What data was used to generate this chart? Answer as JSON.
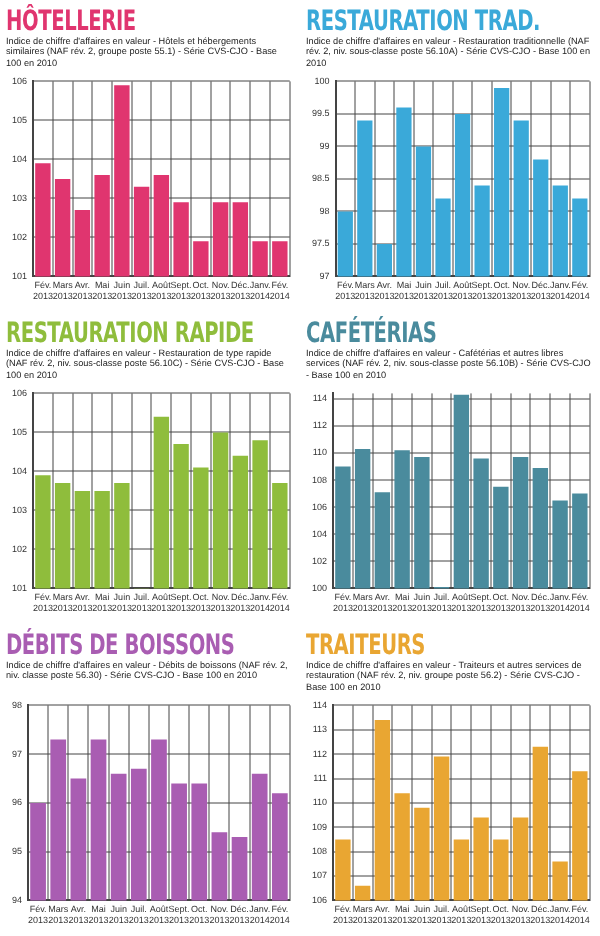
{
  "chart_data": [
    {
      "type": "bar",
      "title": "HÔTELLERIE",
      "subtitle": "Indice de chiffre d'affaires en valeur - Hôtels et hébergements similaires (NAF rév. 2, groupe poste 55.1) - Série CVS-CJO - Base 100 en 2010",
      "categories": [
        "Fév. 2013",
        "Mars 2013",
        "Avr. 2013",
        "Mai 2013",
        "Juin 2013",
        "Juil. 2013",
        "Août 2013",
        "Sept. 2013",
        "Oct. 2013",
        "Nov. 2013",
        "Déc. 2013",
        "Janv. 2014",
        "Fév. 2014"
      ],
      "values": [
        103.9,
        103.5,
        102.7,
        103.6,
        105.9,
        103.3,
        103.6,
        102.9,
        101.9,
        102.9,
        102.9,
        101.9,
        101.9
      ],
      "color": "#e0356f",
      "ylim": [
        101,
        106
      ],
      "yticks": [
        101,
        102,
        103,
        104,
        105,
        106
      ],
      "grid": true
    },
    {
      "type": "bar",
      "title": "RESTAURATION TRAD.",
      "subtitle": "Indice de chiffre d'affaires en valeur - Restauration traditionnelle (NAF rév. 2, niv. sous-classe poste 56.10A) - Série CVS-CJO - Base 100 en 2010",
      "categories": [
        "Fév. 2013",
        "Mars 2013",
        "Avr. 2013",
        "Mai 2013",
        "Juin 2013",
        "Juil. 2013",
        "Août 2013",
        "Sept. 2013",
        "Oct. 2013",
        "Nov. 2013",
        "Déc. 2013",
        "Janv. 2014",
        "Fév. 2014"
      ],
      "values": [
        98.0,
        99.4,
        97.5,
        99.6,
        99.0,
        98.2,
        99.5,
        98.4,
        99.9,
        99.4,
        98.8,
        98.4,
        98.2
      ],
      "color": "#3aa9d9",
      "ylim": [
        97,
        100
      ],
      "yticks": [
        97,
        97.5,
        98,
        98.5,
        99,
        99.5,
        100
      ],
      "grid": true
    },
    {
      "type": "bar",
      "title": "RESTAURATION RAPIDE",
      "subtitle": "Indice de chiffre d'affaires en valeur - Restauration de type rapide (NAF rév. 2, niv. sous-classe poste 56.10C) - Série CVS-CJO - Base 100 en 2010",
      "categories": [
        "Fév. 2013",
        "Mars 2013",
        "Avr. 2013",
        "Mai 2013",
        "Juin 2013",
        "Juil. 2013",
        "Août 2013",
        "Sept. 2013",
        "Oct. 2013",
        "Nov. 2013",
        "Déc. 2013",
        "Janv. 2014",
        "Fév. 2014"
      ],
      "values": [
        103.9,
        103.7,
        103.5,
        103.5,
        103.7,
        101.0,
        105.4,
        104.7,
        104.1,
        105.0,
        104.4,
        104.8,
        103.7
      ],
      "color": "#8fbd3c",
      "ylim": [
        101,
        106
      ],
      "yticks": [
        101,
        102,
        103,
        104,
        105,
        106
      ],
      "grid": true
    },
    {
      "type": "bar",
      "title": "CAFÉTÉRIAS",
      "subtitle": "Indice de chiffre d'affaires en valeur - Cafétérias et autres libres services (NAF rév. 2, niv. sous-classe poste 56.10B) - Série CVS-CJO - Base 100 en 2010",
      "categories": [
        "Fév. 2013",
        "Mars 2013",
        "Avr. 2013",
        "Mai 2013",
        "Juin 2013",
        "Juil. 2013",
        "Août 2013",
        "Sept. 2013",
        "Oct. 2013",
        "Nov. 2013",
        "Déc. 2013",
        "Janv. 2014",
        "Fév. 2014"
      ],
      "values": [
        109.0,
        110.3,
        107.1,
        110.2,
        109.7,
        100.1,
        114.3,
        109.6,
        107.5,
        109.7,
        108.9,
        106.5,
        107.0
      ],
      "color": "#4a8b9d",
      "ylim": [
        100,
        114.4
      ],
      "yticks": [
        100,
        102,
        104,
        106,
        108,
        110,
        112,
        114
      ],
      "grid": true
    },
    {
      "type": "bar",
      "title": "DÉBITS DE BOISSONS",
      "subtitle": "Indice de chiffre d'affaires en valeur - Débits de boissons (NAF rév. 2, niv. classe poste 56.30) - Série CVS-CJO - Base 100 en 2010",
      "categories": [
        "Fév. 2013",
        "Mars 2013",
        "Avr. 2013",
        "Mai 2013",
        "Juin 2013",
        "Juil. 2013",
        "Août 2013",
        "Sept. 2013",
        "Oct. 2013",
        "Nov. 2013",
        "Déc. 2013",
        "Janv. 2014",
        "Fév. 2014"
      ],
      "values": [
        96.0,
        97.3,
        96.5,
        97.3,
        96.6,
        96.7,
        97.3,
        96.4,
        96.4,
        95.4,
        95.3,
        96.6,
        96.2
      ],
      "color": "#a95db2",
      "ylim": [
        94,
        98
      ],
      "yticks": [
        94,
        95,
        96,
        97,
        98
      ],
      "grid": true
    },
    {
      "type": "bar",
      "title": "TRAITEURS",
      "subtitle": "Indice de chiffre d'affaires en valeur - Traiteurs et autres services de restauration (NAF rév. 2, niv. groupe poste 56.2) - Série CVS-CJO - Base 100 en 2010",
      "categories": [
        "Fév. 2013",
        "Mars 2013",
        "Avr. 2013",
        "Mai 2013",
        "Juin 2013",
        "Juil. 2013",
        "Août 2013",
        "Sept. 2013",
        "Oct. 2013",
        "Nov. 2013",
        "Déc. 2013",
        "Janv. 2014",
        "Fév. 2014"
      ],
      "values": [
        108.5,
        106.6,
        113.4,
        110.4,
        109.8,
        111.9,
        108.5,
        109.4,
        108.5,
        109.4,
        112.3,
        107.6,
        111.3
      ],
      "color": "#e9a632",
      "ylim": [
        106,
        114
      ],
      "yticks": [
        106,
        107,
        108,
        109,
        110,
        111,
        112,
        113,
        114
      ],
      "grid": true
    }
  ]
}
